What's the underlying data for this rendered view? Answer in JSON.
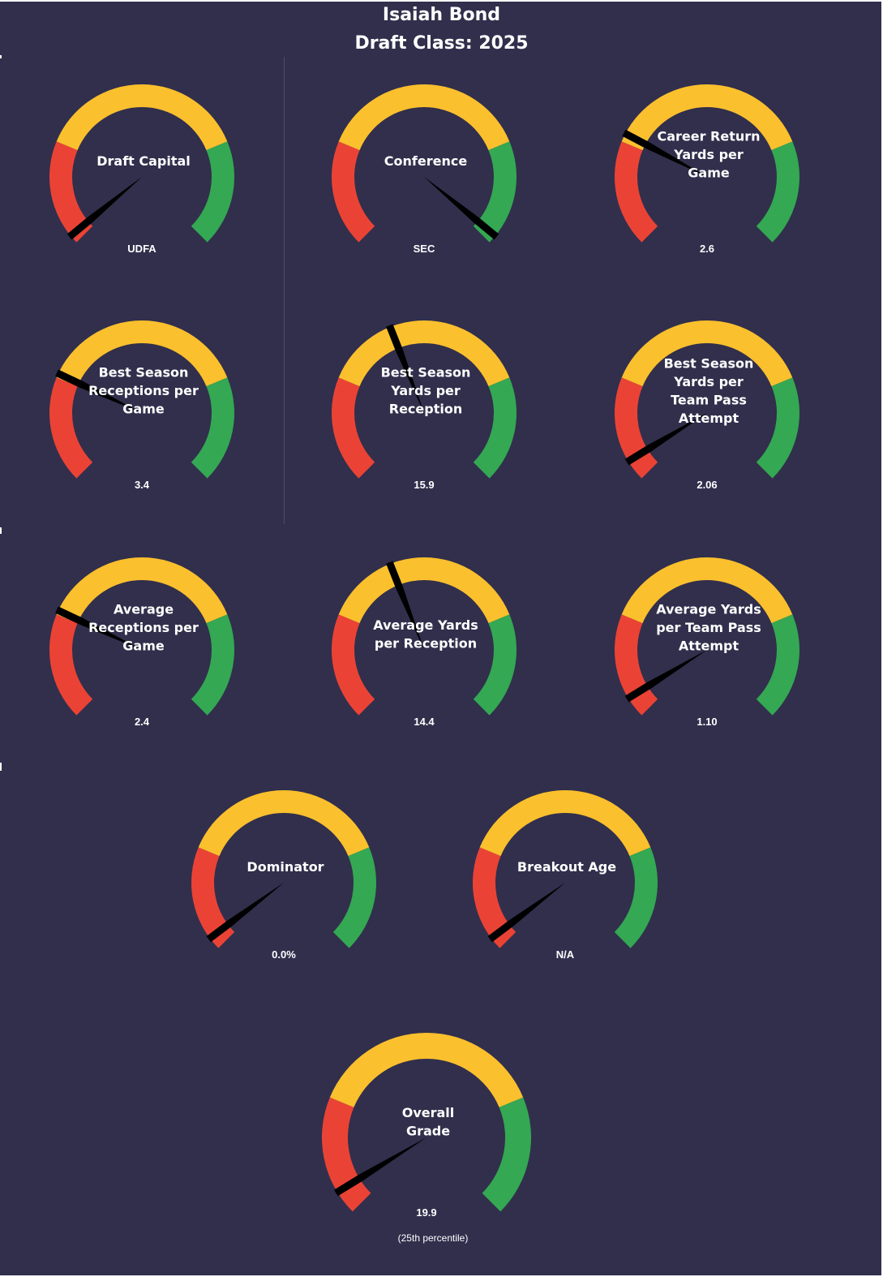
{
  "header": {
    "player_name": "Isaiah Bond",
    "draft_class_label": "Draft Class: 2025"
  },
  "colors": {
    "background": "#312f4c",
    "red": "#ea4335",
    "yellow": "#fbc02d",
    "green": "#34a853",
    "needle": "#000000",
    "text": "#ffffff"
  },
  "chart_data": {
    "type": "gauge",
    "gauges": [
      {
        "id": "draft-capital",
        "label_lines": [
          "Draft Capital"
        ],
        "value_text": "UDFA",
        "needle_fraction": 0.02
      },
      {
        "id": "conference",
        "label_lines": [
          "Conference"
        ],
        "value_text": "SEC",
        "needle_fraction": 0.98
      },
      {
        "id": "career-return-yards",
        "label_lines": [
          "Career Return",
          "Yards per",
          "Game"
        ],
        "value_text": "2.6",
        "needle_fraction": 0.27
      },
      {
        "id": "best-season-receptions",
        "label_lines": [
          "Best Season",
          "Receptions per",
          "Game"
        ],
        "value_text": "3.4",
        "needle_fraction": 0.26
      },
      {
        "id": "best-season-ypr",
        "label_lines": [
          "Best Season",
          "Yards per",
          "Reception"
        ],
        "value_text": "15.9",
        "needle_fraction": 0.42
      },
      {
        "id": "best-season-yptpa",
        "label_lines": [
          "Best Season",
          "Yards per",
          "Team Pass",
          "Attempt"
        ],
        "value_text": "2.06",
        "needle_fraction": 0.05
      },
      {
        "id": "average-receptions",
        "label_lines": [
          "Average",
          "Receptions per",
          "Game"
        ],
        "value_text": "2.4",
        "needle_fraction": 0.26
      },
      {
        "id": "average-ypr",
        "label_lines": [
          "Average Yards",
          "per Reception"
        ],
        "value_text": "14.4",
        "needle_fraction": 0.42
      },
      {
        "id": "average-yptpa",
        "label_lines": [
          "Average Yards",
          "per Team Pass",
          "Attempt"
        ],
        "value_text": "1.10",
        "needle_fraction": 0.05
      },
      {
        "id": "dominator",
        "label_lines": [
          "Dominator"
        ],
        "value_text": "0.0%",
        "needle_fraction": 0.03
      },
      {
        "id": "breakout-age",
        "label_lines": [
          "Breakout Age"
        ],
        "value_text": "N/A",
        "needle_fraction": 0.03
      },
      {
        "id": "overall-grade",
        "label_lines": [
          "Overall",
          "Grade"
        ],
        "value_text": "19.9",
        "needle_fraction": 0.05,
        "note": "(25th  percentile)"
      }
    ]
  }
}
